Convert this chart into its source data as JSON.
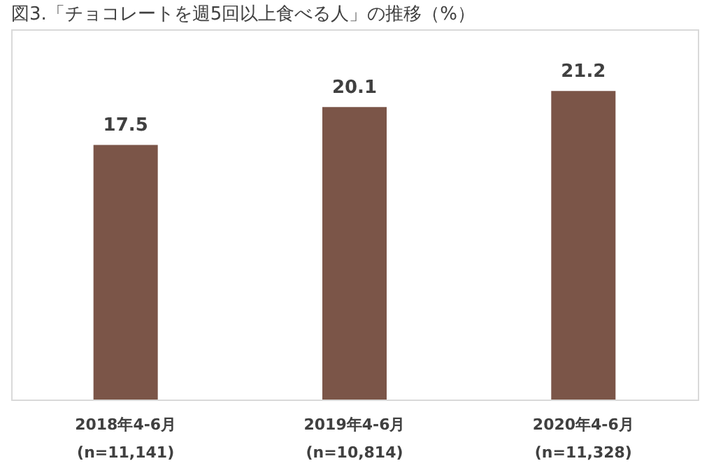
{
  "chart_data": {
    "type": "bar",
    "title": "図3.「チョコレートを週5回以上食べる人」の推移（%）",
    "categories": [
      "2018年4-6月 (n=11,141)",
      "2019年4-6月 (n=10,814)",
      "2020年4-6月 (n=11,328)"
    ],
    "values": [
      17.5,
      20.1,
      21.2
    ],
    "color": "#7b5548",
    "data_labels": true
  }
}
